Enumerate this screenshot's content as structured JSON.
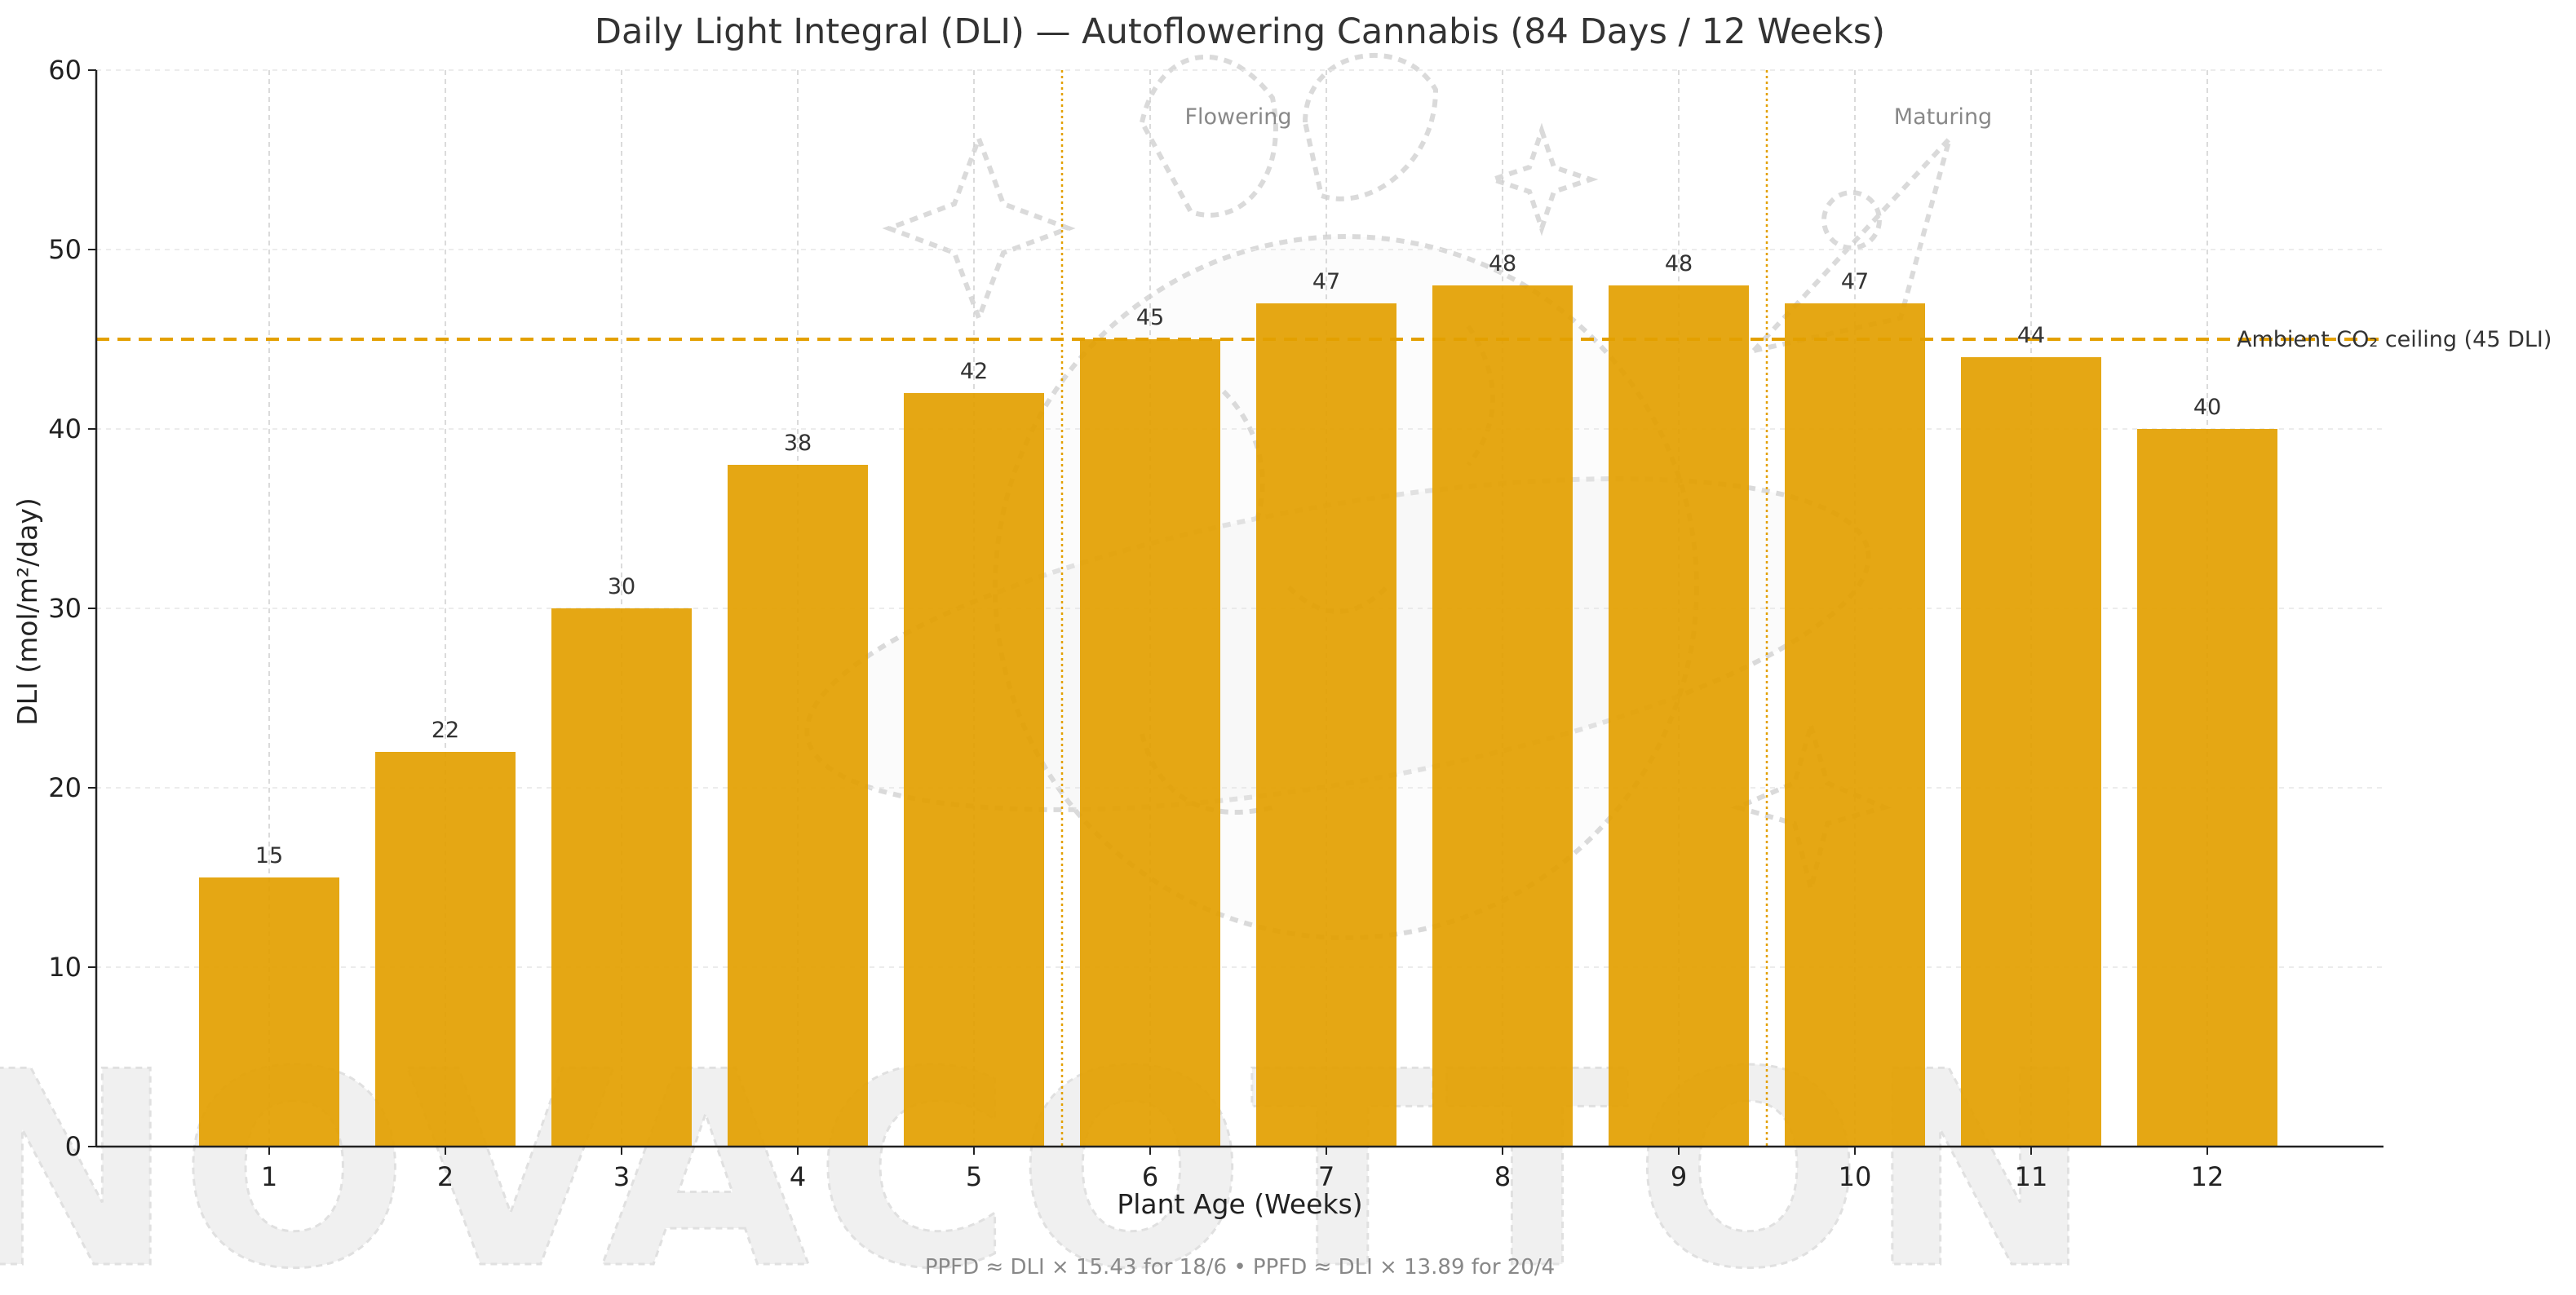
{
  "chart_data": {
    "type": "bar",
    "title": "Daily Light Integral (DLI) — Autoflowering Cannabis (84 Days / 12 Weeks)",
    "xlabel": "Plant Age (Weeks)",
    "ylabel": "DLI (mol/m²/day)",
    "categories": [
      "1",
      "2",
      "3",
      "4",
      "5",
      "6",
      "7",
      "8",
      "9",
      "10",
      "11",
      "12"
    ],
    "values": [
      15,
      22,
      30,
      38,
      42,
      45,
      47,
      48,
      48,
      47,
      44,
      40
    ],
    "value_labels": [
      "15",
      "22",
      "30",
      "38",
      "42",
      "45",
      "47",
      "48",
      "48",
      "47",
      "44",
      "40"
    ],
    "ylim": [
      0,
      60
    ],
    "yticks": [
      0,
      10,
      20,
      30,
      40,
      50,
      60
    ],
    "ytick_labels": [
      "0",
      "10",
      "20",
      "30",
      "40",
      "50",
      "60"
    ],
    "bar_color": "#e3a000",
    "grid": true,
    "reference_line": {
      "value": 45,
      "label": "Ambient CO₂ ceiling (45 DLI)",
      "color": "#e3a000",
      "style": "dashed"
    },
    "phase_dividers": [
      {
        "x": 5.5,
        "label": "Flowering",
        "color": "#e3a000"
      },
      {
        "x": 9.5,
        "label": "Maturing",
        "color": "#e3a000"
      }
    ],
    "footnote": "PPFD ≈ DLI × 15.43 for 18/6  •  PPFD ≈ DLI × 13.89 for 20/4"
  },
  "watermark": {
    "text": "NOVACOTTON"
  }
}
